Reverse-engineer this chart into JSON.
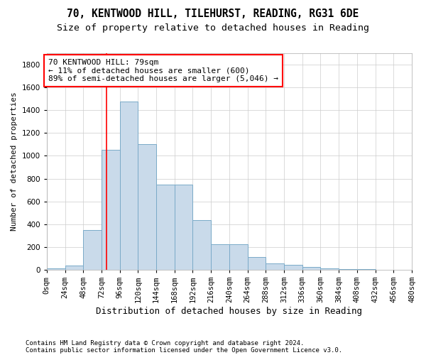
{
  "title1": "70, KENTWOOD HILL, TILEHURST, READING, RG31 6DE",
  "title2": "Size of property relative to detached houses in Reading",
  "xlabel": "Distribution of detached houses by size in Reading",
  "ylabel": "Number of detached properties",
  "bar_values": [
    10,
    35,
    350,
    1050,
    1475,
    1100,
    745,
    745,
    435,
    225,
    225,
    110,
    55,
    45,
    25,
    15,
    5,
    3,
    1,
    0
  ],
  "bin_edges": [
    0,
    24,
    48,
    72,
    96,
    120,
    144,
    168,
    192,
    216,
    240,
    264,
    288,
    312,
    336,
    360,
    384,
    408,
    432,
    456,
    480
  ],
  "bar_color": "#c9daea",
  "bar_edge_color": "#7aaac8",
  "property_line_x": 79,
  "annotation_text": "70 KENTWOOD HILL: 79sqm\n← 11% of detached houses are smaller (600)\n89% of semi-detached houses are larger (5,046) →",
  "annotation_box_color": "white",
  "annotation_box_edge_color": "red",
  "vline_color": "red",
  "grid_color": "#cccccc",
  "footer1": "Contains HM Land Registry data © Crown copyright and database right 2024.",
  "footer2": "Contains public sector information licensed under the Open Government Licence v3.0.",
  "ylim": [
    0,
    1900
  ],
  "yticks": [
    0,
    200,
    400,
    600,
    800,
    1000,
    1200,
    1400,
    1600,
    1800
  ],
  "tick_labels": [
    "0sqm",
    "24sqm",
    "48sqm",
    "72sqm",
    "96sqm",
    "120sqm",
    "144sqm",
    "168sqm",
    "192sqm",
    "216sqm",
    "240sqm",
    "264sqm",
    "288sqm",
    "312sqm",
    "336sqm",
    "360sqm",
    "384sqm",
    "408sqm",
    "432sqm",
    "456sqm",
    "480sqm"
  ],
  "title1_fontsize": 10.5,
  "title2_fontsize": 9.5,
  "xlabel_fontsize": 9,
  "ylabel_fontsize": 8,
  "tick_fontsize": 7.5,
  "annotation_fontsize": 8,
  "footer_fontsize": 6.5
}
